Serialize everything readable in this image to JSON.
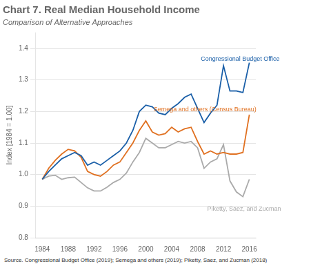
{
  "chart_data": {
    "type": "line",
    "title": "Chart 7. Real Median Household Income",
    "subtitle": "Comparison of Alternative Approaches",
    "ylabel": "Index [1984 = 1.00]",
    "source": "Source. Congressional Budget Office (2019); Semega and others (2019); Piketty, Saez, and Zucman (2018)",
    "xlim": [
      1983,
      2017
    ],
    "ylim": [
      0.8,
      1.45
    ],
    "xticks": [
      1984,
      1988,
      1992,
      1996,
      2000,
      2004,
      2008,
      2012,
      2016
    ],
    "yticks": [
      0.8,
      0.9,
      {
        "value": 1.0,
        "label": "1.0"
      },
      1.1,
      1.2,
      1.3,
      1.4
    ],
    "grid": "y",
    "x": [
      1984,
      1985,
      1986,
      1987,
      1988,
      1989,
      1990,
      1991,
      1992,
      1993,
      1994,
      1995,
      1996,
      1997,
      1998,
      1999,
      2000,
      2001,
      2002,
      2003,
      2004,
      2005,
      2006,
      2007,
      2008,
      2009,
      2010,
      2011,
      2012,
      2013,
      2014,
      2015,
      2016
    ],
    "series": [
      {
        "name": "Congressional Budget Office",
        "color": "#1a5fa8",
        "values": [
          0.985,
          1.01,
          1.03,
          1.05,
          1.06,
          1.07,
          1.06,
          1.03,
          1.04,
          1.03,
          1.045,
          1.06,
          1.075,
          1.1,
          1.14,
          1.2,
          1.22,
          1.215,
          1.195,
          1.19,
          1.21,
          1.225,
          1.245,
          1.255,
          1.21,
          1.165,
          1.195,
          1.22,
          1.345,
          1.265,
          1.265,
          1.26,
          1.355
        ]
      },
      {
        "name": "Semega and others (Census Bureau)",
        "color": "#e07020",
        "values": [
          0.985,
          1.02,
          1.045,
          1.065,
          1.08,
          1.075,
          1.055,
          1.01,
          1.0,
          0.995,
          1.01,
          1.03,
          1.04,
          1.07,
          1.1,
          1.14,
          1.17,
          1.135,
          1.125,
          1.13,
          1.15,
          1.135,
          1.145,
          1.15,
          1.105,
          1.065,
          1.075,
          1.065,
          1.07,
          1.065,
          1.065,
          1.07,
          1.19
        ]
      },
      {
        "name": "Piketty, Saez, and Zucman",
        "color": "#aaaaaa",
        "values": [
          0.985,
          0.995,
          0.998,
          0.985,
          0.99,
          0.992,
          0.975,
          0.958,
          0.948,
          0.948,
          0.96,
          0.975,
          0.985,
          1.005,
          1.04,
          1.07,
          1.115,
          1.1,
          1.085,
          1.085,
          1.095,
          1.105,
          1.1,
          1.105,
          1.085,
          1.02,
          1.04,
          1.05,
          1.095,
          0.98,
          0.945,
          0.93,
          0.985
        ]
      }
    ],
    "annotations": [
      {
        "text": "Congressional Budget Office",
        "x": 2008.5,
        "y": 1.375,
        "color": "#1a5fa8"
      },
      {
        "text": "Semega and others (Census Bureau)",
        "x": 2001.2,
        "y": 1.215,
        "color": "#e07020"
      },
      {
        "text": "Piketty, Saez, and Zucman",
        "x": 2009.5,
        "y": 0.9,
        "color": "#aaaaaa"
      }
    ]
  }
}
